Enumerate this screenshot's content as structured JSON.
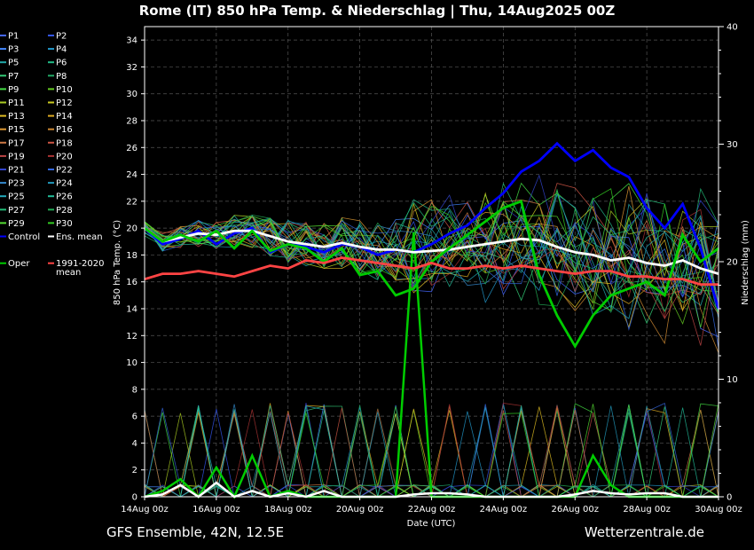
{
  "chart_data": {
    "type": "line",
    "title": "Rome  (IT)  850 hPa Temp. & Niederschlag | Thu, 14Aug2025 00Z",
    "xlabel": "Date (UTC)",
    "ylabel": "850 hPa Temp. (°C)",
    "y2label": "Niederschlag (mm)",
    "footer_left": "GFS Ensemble, 42N, 12.5E",
    "footer_right": "Wetterzentrale.de",
    "xlim": [
      "14Aug 00z",
      "30Aug 00z"
    ],
    "x_ticks": [
      "14Aug 00z",
      "16Aug 00z",
      "18Aug 00z",
      "20Aug 00z",
      "22Aug 00z",
      "24Aug 00z",
      "26Aug 00z",
      "28Aug 00z",
      "30Aug 00z"
    ],
    "ylim": [
      0,
      35
    ],
    "y_ticks": [
      0,
      2,
      4,
      6,
      8,
      10,
      12,
      14,
      16,
      18,
      20,
      22,
      24,
      26,
      28,
      30,
      32,
      34
    ],
    "y2lim": [
      0,
      40
    ],
    "y2_ticks": [
      0,
      10,
      20,
      30,
      40
    ],
    "grid": true,
    "legend_position": "left",
    "legend": [
      "P1",
      "P2",
      "P3",
      "P4",
      "P5",
      "P6",
      "P7",
      "P8",
      "P9",
      "P10",
      "P11",
      "P12",
      "P13",
      "P14",
      "P15",
      "P16",
      "P17",
      "P18",
      "P19",
      "P20",
      "P21",
      "P22",
      "P23",
      "P24",
      "P25",
      "P26",
      "P27",
      "P28",
      "P29",
      "P30",
      "Control",
      "Ens. mean",
      "Oper",
      "1991-2020 mean"
    ],
    "x_days": [
      0,
      0.5,
      1,
      1.5,
      2,
      2.5,
      3,
      3.5,
      4,
      4.5,
      5,
      5.5,
      6,
      6.5,
      7,
      7.5,
      8,
      8.5,
      9,
      9.5,
      10,
      10.5,
      11,
      11.5,
      12,
      12.5,
      13,
      13.5,
      14,
      14.5,
      15,
      15.5,
      16
    ],
    "series": [
      {
        "name": "Control",
        "color": "#0000ff",
        "values": [
          20.0,
          18.8,
          19.2,
          19.8,
          18.8,
          19.6,
          20.0,
          18.2,
          18.8,
          18.6,
          18.2,
          18.8,
          18.6,
          18.0,
          18.4,
          18.2,
          18.8,
          19.6,
          20.2,
          21.5,
          22.6,
          24.2,
          25.0,
          26.3,
          25.0,
          25.8,
          24.5,
          23.8,
          21.5,
          20.0,
          21.8,
          18.5,
          14.0
        ]
      },
      {
        "name": "Ens. mean",
        "color": "#ffffff",
        "values": [
          20.0,
          19.0,
          19.3,
          19.6,
          19.5,
          19.8,
          19.8,
          19.4,
          19.0,
          18.8,
          18.6,
          18.9,
          18.6,
          18.4,
          18.4,
          18.2,
          18.3,
          18.4,
          18.6,
          18.8,
          19.0,
          19.2,
          19.1,
          18.6,
          18.2,
          18.0,
          17.6,
          17.8,
          17.4,
          17.2,
          17.6,
          17.0,
          16.6
        ]
      },
      {
        "name": "Oper",
        "color": "#00cc00",
        "values": [
          20.0,
          19.0,
          19.5,
          19.0,
          19.8,
          18.5,
          19.8,
          18.3,
          18.8,
          18.5,
          17.5,
          18.5,
          16.5,
          16.8,
          15.0,
          15.5,
          17.5,
          18.5,
          19.5,
          20.5,
          21.5,
          22.0,
          16.5,
          13.5,
          11.2,
          13.5,
          15.0,
          15.5,
          16.0,
          15.0,
          19.5,
          17.5,
          18.5
        ]
      },
      {
        "name": "1991-2020 mean",
        "color": "#ff4444",
        "values": [
          16.2,
          16.6,
          16.6,
          16.8,
          16.6,
          16.4,
          16.8,
          17.2,
          17.0,
          17.6,
          17.4,
          17.8,
          17.6,
          17.4,
          17.2,
          17.0,
          17.4,
          17.0,
          17.0,
          17.2,
          17.0,
          17.2,
          17.0,
          16.8,
          16.6,
          16.8,
          16.8,
          16.4,
          16.4,
          16.2,
          16.2,
          15.8,
          15.8
        ]
      }
    ],
    "precip_series": [
      {
        "name": "Oper",
        "color": "#00cc00",
        "values": [
          0.0,
          0.5,
          1.5,
          0.0,
          2.5,
          0.0,
          3.5,
          0.0,
          0.5,
          0.0,
          0.0,
          0.0,
          0.0,
          0.0,
          0.0,
          22.5,
          0.0,
          0.0,
          0.0,
          0.0,
          0.0,
          0.0,
          0.0,
          0.0,
          0.0,
          3.5,
          1.0,
          0.0,
          0.0,
          0.0,
          0.0,
          0.0,
          0.0
        ]
      },
      {
        "name": "Ens. mean",
        "color": "#ffffff",
        "values": [
          0.0,
          0.2,
          1.0,
          0.0,
          1.2,
          0.0,
          0.5,
          0.0,
          0.3,
          0.0,
          0.5,
          0.0,
          0.0,
          0.0,
          0.0,
          0.2,
          0.3,
          0.3,
          0.2,
          0.0,
          0.0,
          0.0,
          0.0,
          0.0,
          0.2,
          0.5,
          0.3,
          0.2,
          0.3,
          0.3,
          0.0,
          0.0,
          0.0
        ]
      }
    ]
  },
  "legend_items": [
    {
      "label": "P1",
      "color": "#4466ff",
      "col": 0,
      "row": 0
    },
    {
      "label": "P2",
      "color": "#3355ee",
      "col": 1,
      "row": 0
    },
    {
      "label": "P3",
      "color": "#4488ff",
      "col": 0,
      "row": 1
    },
    {
      "label": "P4",
      "color": "#2299cc",
      "col": 1,
      "row": 1
    },
    {
      "label": "P5",
      "color": "#22aaaa",
      "col": 0,
      "row": 2
    },
    {
      "label": "P6",
      "color": "#22bb88",
      "col": 1,
      "row": 2
    },
    {
      "label": "P7",
      "color": "#33cc77",
      "col": 0,
      "row": 3
    },
    {
      "label": "P8",
      "color": "#22aa66",
      "col": 1,
      "row": 3
    },
    {
      "label": "P9",
      "color": "#44dd44",
      "col": 0,
      "row": 4
    },
    {
      "label": "P10",
      "color": "#66cc22",
      "col": 1,
      "row": 4
    },
    {
      "label": "P11",
      "color": "#aacc22",
      "col": 0,
      "row": 5
    },
    {
      "label": "P12",
      "color": "#cccc22",
      "col": 1,
      "row": 5
    },
    {
      "label": "P13",
      "color": "#ddbb22",
      "col": 0,
      "row": 6
    },
    {
      "label": "P14",
      "color": "#ddaa22",
      "col": 1,
      "row": 6
    },
    {
      "label": "P15",
      "color": "#dd9933",
      "col": 0,
      "row": 7
    },
    {
      "label": "P16",
      "color": "#cc8833",
      "col": 1,
      "row": 7
    },
    {
      "label": "P17",
      "color": "#cc7744",
      "col": 0,
      "row": 8
    },
    {
      "label": "P18",
      "color": "#cc5544",
      "col": 1,
      "row": 8
    },
    {
      "label": "P19",
      "color": "#bb4444",
      "col": 0,
      "row": 9
    },
    {
      "label": "P20",
      "color": "#aa3333",
      "col": 1,
      "row": 9
    },
    {
      "label": "P21",
      "color": "#3344cc",
      "col": 0,
      "row": 10
    },
    {
      "label": "P22",
      "color": "#3366dd",
      "col": 1,
      "row": 10
    },
    {
      "label": "P23",
      "color": "#3388cc",
      "col": 0,
      "row": 11
    },
    {
      "label": "P24",
      "color": "#2299bb",
      "col": 1,
      "row": 11
    },
    {
      "label": "P25",
      "color": "#22aabb",
      "col": 0,
      "row": 12
    },
    {
      "label": "P26",
      "color": "#22bb99",
      "col": 1,
      "row": 12
    },
    {
      "label": "P27",
      "color": "#22bb77",
      "col": 0,
      "row": 13
    },
    {
      "label": "P28",
      "color": "#22aa55",
      "col": 1,
      "row": 13
    },
    {
      "label": "P29",
      "color": "#55dd33",
      "col": 0,
      "row": 14
    },
    {
      "label": "P30",
      "color": "#33cc22",
      "col": 1,
      "row": 14
    },
    {
      "label": "Control",
      "color": "#0000ff",
      "col": 0,
      "row": 15
    },
    {
      "label": "Ens. mean",
      "color": "#ffffff",
      "col": 1,
      "row": 15
    },
    {
      "label": "1991-2020\nmean",
      "color": "#ff4444",
      "col": 1,
      "row": 17
    },
    {
      "label": "Oper",
      "color": "#00cc00",
      "col": 0,
      "row": 17
    }
  ],
  "member_colors": [
    "#4466ff",
    "#3355ee",
    "#4488ff",
    "#2299cc",
    "#22aaaa",
    "#22bb88",
    "#33cc77",
    "#22aa66",
    "#44dd44",
    "#66cc22",
    "#aacc22",
    "#cccc22",
    "#ddbb22",
    "#ddaa22",
    "#dd9933",
    "#cc8833",
    "#cc7744",
    "#cc5544",
    "#bb4444",
    "#aa3333",
    "#3344cc",
    "#3366dd",
    "#3388cc",
    "#2299bb",
    "#22aabb",
    "#22bb99",
    "#22bb77",
    "#22aa55",
    "#55dd33",
    "#33cc22"
  ]
}
